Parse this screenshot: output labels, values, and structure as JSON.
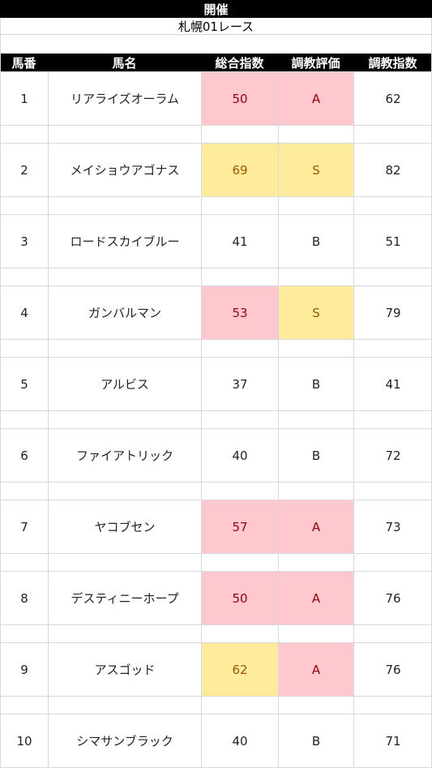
{
  "header": {
    "title": "開催",
    "race": "札幌01レース"
  },
  "columns": [
    "馬番",
    "馬名",
    "総合指数",
    "調教評価",
    "調教指数"
  ],
  "colors": {
    "pink_bg": "#ffc7ce",
    "pink_text": "#9c0006",
    "yellow_bg": "#ffeb9c",
    "yellow_text": "#9c5700"
  },
  "rows": [
    {
      "num": "1",
      "name": "リアライズオーラム",
      "total": "50",
      "eval": "A",
      "train": "62",
      "total_hl": "pink",
      "eval_hl": "pink"
    },
    {
      "num": "2",
      "name": "メイショウアゴナス",
      "total": "69",
      "eval": "S",
      "train": "82",
      "total_hl": "yellow",
      "eval_hl": "yellow"
    },
    {
      "num": "3",
      "name": "ロードスカイブルー",
      "total": "41",
      "eval": "B",
      "train": "51",
      "total_hl": "",
      "eval_hl": ""
    },
    {
      "num": "4",
      "name": "ガンバルマン",
      "total": "53",
      "eval": "S",
      "train": "79",
      "total_hl": "pink",
      "eval_hl": "yellow"
    },
    {
      "num": "5",
      "name": "アルビス",
      "total": "37",
      "eval": "B",
      "train": "41",
      "total_hl": "",
      "eval_hl": ""
    },
    {
      "num": "6",
      "name": "ファイアトリック",
      "total": "40",
      "eval": "B",
      "train": "72",
      "total_hl": "",
      "eval_hl": ""
    },
    {
      "num": "7",
      "name": "ヤコブセン",
      "total": "57",
      "eval": "A",
      "train": "73",
      "total_hl": "pink",
      "eval_hl": "pink"
    },
    {
      "num": "8",
      "name": "デスティニーホープ",
      "total": "50",
      "eval": "A",
      "train": "76",
      "total_hl": "pink",
      "eval_hl": "pink"
    },
    {
      "num": "9",
      "name": "アスゴッド",
      "total": "62",
      "eval": "A",
      "train": "76",
      "total_hl": "yellow",
      "eval_hl": "pink"
    },
    {
      "num": "10",
      "name": "シマサンブラック",
      "total": "40",
      "eval": "B",
      "train": "71",
      "total_hl": "",
      "eval_hl": ""
    }
  ]
}
